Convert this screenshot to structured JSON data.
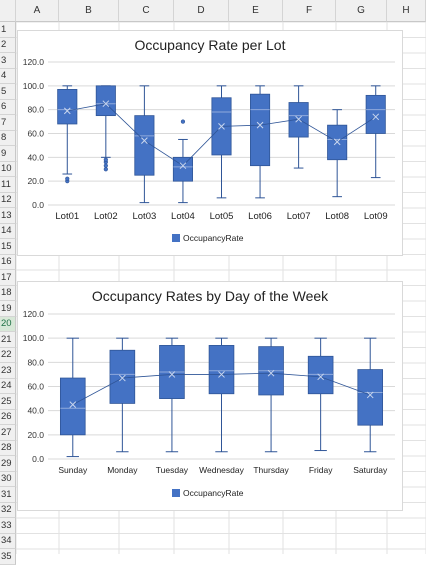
{
  "sheet": {
    "columns": [
      "A",
      "B",
      "C",
      "D",
      "E",
      "F",
      "G",
      "H"
    ],
    "rows": [
      "1",
      "2",
      "3",
      "4",
      "5",
      "6",
      "7",
      "8",
      "9",
      "10",
      "11",
      "12",
      "13",
      "14",
      "15",
      "16",
      "17",
      "18",
      "19",
      "20",
      "21",
      "22",
      "23",
      "24",
      "25",
      "26",
      "27",
      "28",
      "29",
      "30",
      "31",
      "32",
      "33",
      "34",
      "35"
    ],
    "selected_row": "20"
  },
  "chart_data": [
    {
      "type": "box",
      "title": "Occupancy Rate per Lot",
      "categories": [
        "Lot01",
        "Lot02",
        "Lot03",
        "Lot04",
        "Lot05",
        "Lot06",
        "Lot07",
        "Lot08",
        "Lot09"
      ],
      "ylim": [
        0,
        120
      ],
      "yticks": [
        "0.0",
        "20.0",
        "40.0",
        "60.0",
        "80.0",
        "100.0",
        "120.0"
      ],
      "legend": "OccupancyRate",
      "legend_position": "bottom",
      "series": [
        {
          "name": "OccupancyRate",
          "boxes": [
            {
              "min": 26,
              "q1": 68,
              "median": 80,
              "q3": 97,
              "max": 100,
              "mean": 79,
              "outliers": [
                20,
                22
              ]
            },
            {
              "min": 40,
              "q1": 75,
              "median": 85,
              "q3": 100,
              "max": 100,
              "mean": 85,
              "outliers": [
                30,
                33,
                36,
                38
              ]
            },
            {
              "min": 2,
              "q1": 25,
              "median": 58,
              "q3": 75,
              "max": 100,
              "mean": 54,
              "outliers": []
            },
            {
              "min": 2,
              "q1": 20,
              "median": 32,
              "q3": 40,
              "max": 55,
              "mean": 33,
              "outliers": [
                70
              ]
            },
            {
              "min": 6,
              "q1": 42,
              "median": 78,
              "q3": 90,
              "max": 100,
              "mean": 66,
              "outliers": []
            },
            {
              "min": 6,
              "q1": 33,
              "median": 80,
              "q3": 93,
              "max": 100,
              "mean": 67,
              "outliers": []
            },
            {
              "min": 31,
              "q1": 57,
              "median": 75,
              "q3": 86,
              "max": 100,
              "mean": 72,
              "outliers": []
            },
            {
              "min": 7,
              "q1": 38,
              "median": 55,
              "q3": 67,
              "max": 80,
              "mean": 53,
              "outliers": []
            },
            {
              "min": 23,
              "q1": 60,
              "median": 80,
              "q3": 92,
              "max": 100,
              "mean": 74,
              "outliers": []
            }
          ]
        }
      ]
    },
    {
      "type": "box",
      "title": "Occupancy Rates by Day of the Week",
      "categories": [
        "Sunday",
        "Monday",
        "Tuesday",
        "Wednesday",
        "Thursday",
        "Friday",
        "Saturday"
      ],
      "ylim": [
        0,
        120
      ],
      "yticks": [
        "0.0",
        "20.0",
        "40.0",
        "60.0",
        "80.0",
        "100.0",
        "120.0"
      ],
      "legend": "OccupancyRate",
      "legend_position": "bottom",
      "series": [
        {
          "name": "OccupancyRate",
          "boxes": [
            {
              "min": 2,
              "q1": 20,
              "median": 42,
              "q3": 67,
              "max": 100,
              "mean": 45,
              "outliers": []
            },
            {
              "min": 6,
              "q1": 46,
              "median": 70,
              "q3": 90,
              "max": 100,
              "mean": 67,
              "outliers": []
            },
            {
              "min": 6,
              "q1": 50,
              "median": 72,
              "q3": 94,
              "max": 100,
              "mean": 70,
              "outliers": []
            },
            {
              "min": 6,
              "q1": 54,
              "median": 73,
              "q3": 94,
              "max": 100,
              "mean": 70,
              "outliers": []
            },
            {
              "min": 6,
              "q1": 53,
              "median": 73,
              "q3": 93,
              "max": 100,
              "mean": 71,
              "outliers": []
            },
            {
              "min": 7,
              "q1": 54,
              "median": 70,
              "q3": 85,
              "max": 100,
              "mean": 68,
              "outliers": []
            },
            {
              "min": 6,
              "q1": 28,
              "median": 55,
              "q3": 74,
              "max": 100,
              "mean": 53,
              "outliers": []
            }
          ]
        }
      ]
    }
  ],
  "colors": {
    "box": "#4472c4",
    "box_stroke": "#2f5597",
    "grid": "#d9d9d9",
    "text": "#333333"
  }
}
